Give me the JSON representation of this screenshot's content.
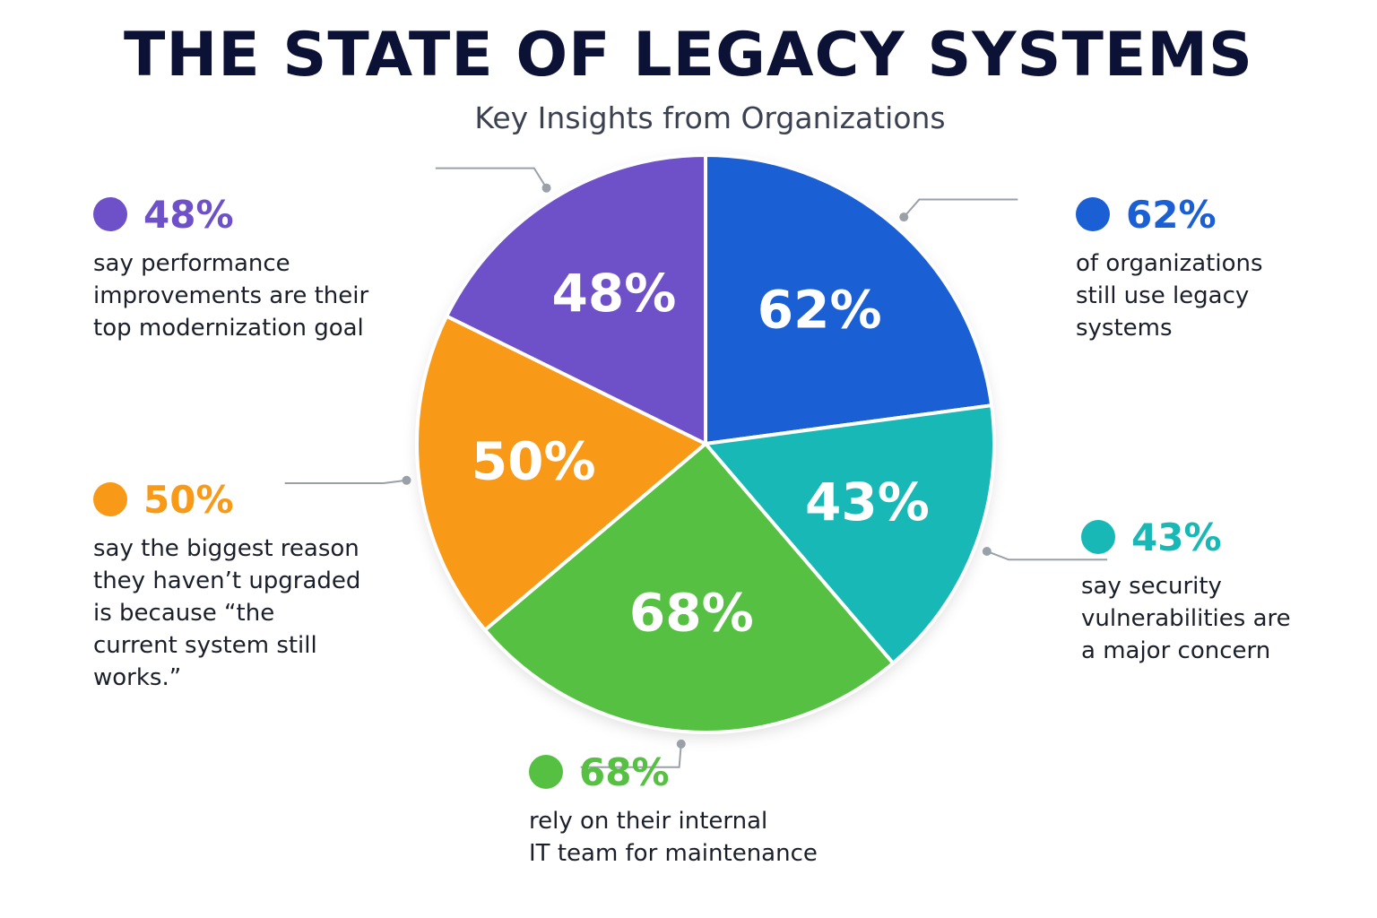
{
  "title": "THE STATE OF LEGACY SYSTEMS",
  "subtitle": "Key Insights from Organizations",
  "chart_data": {
    "type": "pie",
    "slices": [
      {
        "label": "62%",
        "value": 62,
        "color": "#1a5fd4",
        "description": "of organizations\nstill use legacy\nsystems"
      },
      {
        "label": "43%",
        "value": 43,
        "color": "#17b8b5",
        "description": "say security\nvulnerabilities are\na major concern"
      },
      {
        "label": "68%",
        "value": 68,
        "color": "#56c043",
        "description": "rely on their internal\nIT team for maintenance"
      },
      {
        "label": "50%",
        "value": 50,
        "color": "#f89a18",
        "description": "say the biggest reason\nthey haven’t upgraded\nis because “the\ncurrent system still\nworks.”"
      },
      {
        "label": "48%",
        "value": 48,
        "color": "#6e51c8",
        "description": "say performance\nimprovements are their\ntop modernization goal"
      }
    ]
  }
}
